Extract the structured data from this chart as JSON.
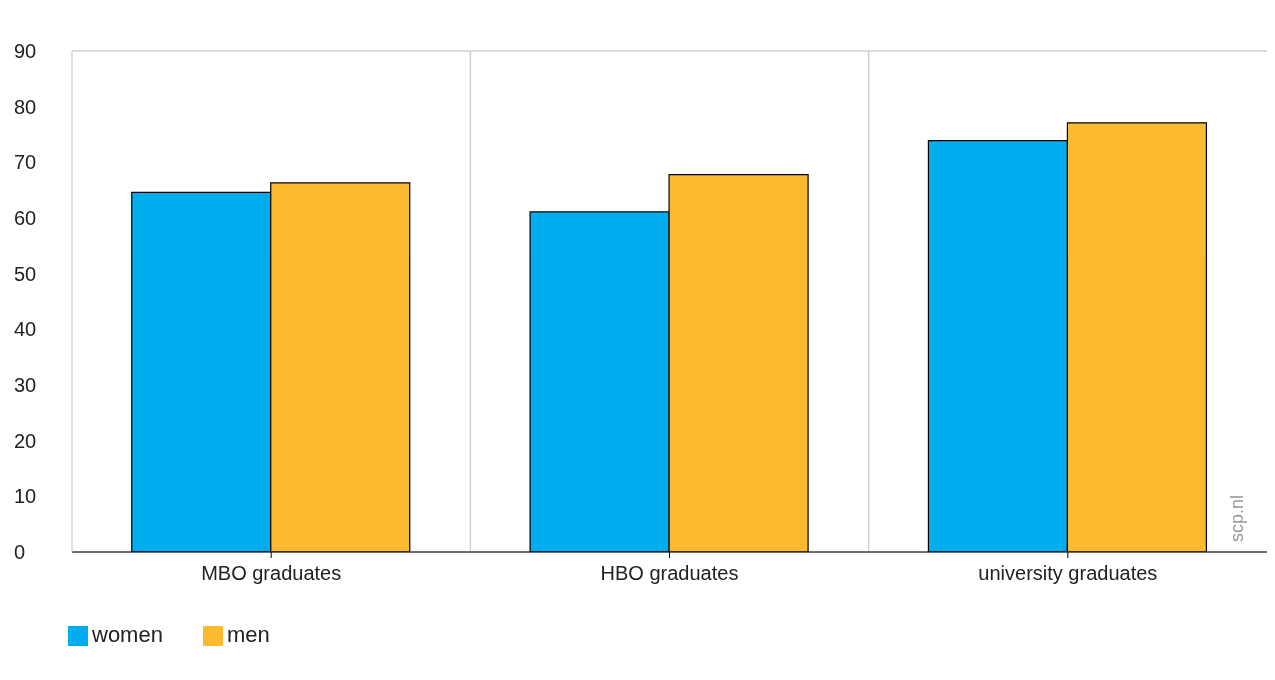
{
  "chart_data": {
    "type": "bar",
    "categories": [
      "MBO graduates",
      "HBO graduates",
      "university graduates"
    ],
    "series": [
      {
        "name": "women",
        "color": "#00aeef",
        "values": [
          64.6,
          61.1,
          73.9
        ]
      },
      {
        "name": "men",
        "color": "#fbba2f",
        "values": [
          66.3,
          67.8,
          77.1
        ]
      }
    ],
    "ylim": [
      0,
      90
    ],
    "yticks": [
      0,
      10,
      20,
      30,
      40,
      50,
      60,
      70,
      80,
      90
    ],
    "grid": true,
    "legend": "bottom left",
    "annotations": [
      "scp.nl"
    ]
  }
}
